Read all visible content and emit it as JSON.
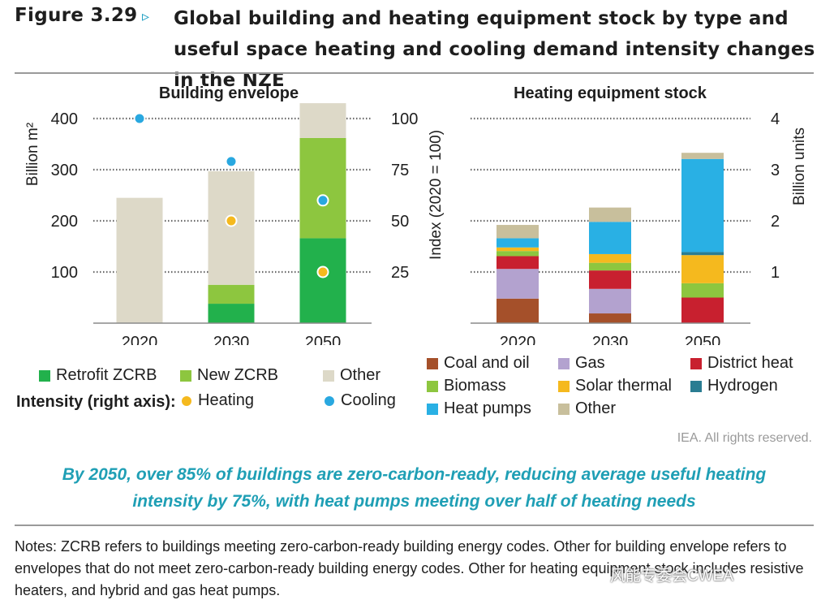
{
  "figure": {
    "label": "Figure 3.29",
    "arrow": "▹",
    "title": "Global building and heating equipment stock by type and useful space heating and cooling demand intensity changes in the NZE"
  },
  "chart_data": [
    {
      "type": "bar",
      "stacked": true,
      "title": "Building envelope",
      "categories": [
        "2020",
        "2030",
        "2050"
      ],
      "ylabel": "Billion m²",
      "ylim": [
        0,
        400
      ],
      "yticks": [
        100,
        200,
        300,
        400
      ],
      "y2label": "Index (2020 = 100)",
      "y2lim": [
        0,
        100
      ],
      "y2ticks": [
        25,
        50,
        75,
        100
      ],
      "series": [
        {
          "name": "Retrofit ZCRB",
          "color": "#22b14c",
          "values": [
            0,
            38,
            166
          ]
        },
        {
          "name": "New ZCRB",
          "color": "#8dc63f",
          "values": [
            0,
            37,
            196
          ]
        },
        {
          "name": "Other",
          "color": "#ddd9c8",
          "values": [
            245,
            222,
            68
          ]
        }
      ],
      "intensity": [
        {
          "name": "Heating",
          "axis": "right",
          "color": "#f5b91e",
          "values": [
            null,
            50,
            25
          ]
        },
        {
          "name": "Cooling",
          "axis": "right",
          "color": "#29a8e0",
          "values": [
            100,
            79,
            60
          ]
        }
      ],
      "intensity_label": "Intensity  (right axis):"
    },
    {
      "type": "bar",
      "stacked": true,
      "title": "Heating equipment stock",
      "categories": [
        "2020",
        "2030",
        "2050"
      ],
      "ylabel": "Billion units",
      "ylim": [
        0,
        4
      ],
      "yticks": [
        1,
        2,
        3,
        4
      ],
      "series": [
        {
          "name": "Coal and oil",
          "color": "#a5502a",
          "values": [
            0.48,
            0.19,
            0
          ]
        },
        {
          "name": "Gas",
          "color": "#b3a2cf",
          "values": [
            0.58,
            0.48,
            0
          ]
        },
        {
          "name": "District heat",
          "color": "#c8202f",
          "values": [
            0.25,
            0.36,
            0.5
          ]
        },
        {
          "name": "Biomass",
          "color": "#8dc63f",
          "values": [
            0.1,
            0.15,
            0.28
          ]
        },
        {
          "name": "Solar thermal",
          "color": "#f5b91e",
          "values": [
            0.07,
            0.17,
            0.55
          ]
        },
        {
          "name": "Hydrogen",
          "color": "#2a7d92",
          "values": [
            0,
            0,
            0.06
          ]
        },
        {
          "name": "Heat pumps",
          "color": "#29b0e4",
          "values": [
            0.18,
            0.63,
            1.82
          ]
        },
        {
          "name": "Other",
          "color": "#c8bf9c",
          "values": [
            0.26,
            0.28,
            0.12
          ]
        }
      ]
    }
  ],
  "rights": "IEA. All rights reserved.",
  "caption": {
    "line1": "By 2050, over 85% of buildings are zero-carbon-ready, reducing average useful heating",
    "line2": "intensity by 75%, with heat pumps meeting over half of heating needs"
  },
  "notes": "Notes: ZCRB refers to buildings meeting zero-carbon-ready building energy codes. Other for building envelope refers to envelopes that do not meet zero-carbon-ready building energy codes. Other for heating equipment stock includes resistive heaters, and hybrid and gas heat pumps.",
  "watermark": "风能专委会CWEA"
}
